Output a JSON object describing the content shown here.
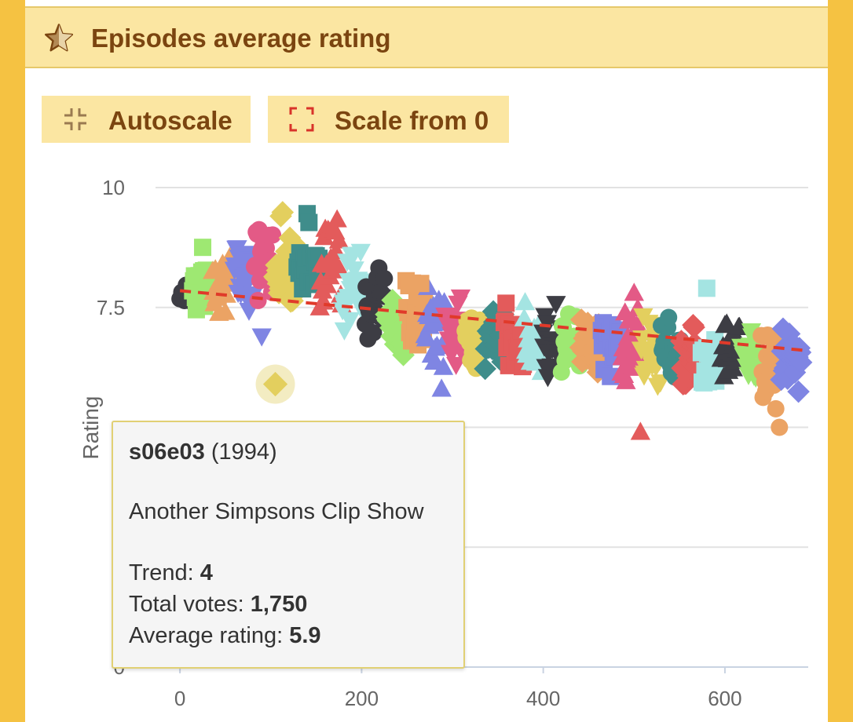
{
  "header": {
    "title": "Episodes average rating",
    "icon": "star-icon"
  },
  "buttons": {
    "autoscale_label": "Autoscale",
    "autoscale_icon": "collapse-icon",
    "scale0_label": "Scale from 0",
    "scale0_icon": "expand-icon"
  },
  "colors": {
    "background": "#f5c242",
    "header_bg": "#fbe6a2",
    "header_text": "#7b4510",
    "trend_line": "#e03a2a",
    "palette": [
      "#3d3d44",
      "#9ee872",
      "#eba364",
      "#7f85e3",
      "#e35a86",
      "#e3cf5e",
      "#3f8d8b",
      "#e35b5b",
      "#a4e4e2"
    ]
  },
  "chart_data": {
    "type": "scatter",
    "xlabel": "",
    "ylabel": "Rating",
    "x_ticks": [
      0,
      200,
      400,
      600
    ],
    "y_ticks": [
      0,
      7.5,
      10
    ],
    "x_range": [
      -20,
      690
    ],
    "y_range": [
      0,
      10
    ],
    "grid": true,
    "trend_line": {
      "x": [
        0,
        690
      ],
      "y": [
        7.85,
        6.6
      ]
    },
    "season_groups": [
      {
        "season": 1,
        "x": [
          0,
          13
        ],
        "mean": 7.8,
        "spread": 0.18,
        "marker": "circle"
      },
      {
        "season": 2,
        "x": [
          14,
          35
        ],
        "mean": 8.0,
        "spread": 0.3,
        "marker": "square"
      },
      {
        "season": 3,
        "x": [
          36,
          59
        ],
        "mean": 8.1,
        "spread": 0.3,
        "marker": "triangle-up"
      },
      {
        "season": 4,
        "x": [
          60,
          81
        ],
        "mean": 8.3,
        "spread": 0.4,
        "marker": "triangle-down"
      },
      {
        "season": 5,
        "x": [
          82,
          103
        ],
        "mean": 8.5,
        "spread": 0.4,
        "marker": "circle"
      },
      {
        "season": 6,
        "x": [
          104,
          128
        ],
        "mean": 8.5,
        "spread": 0.45,
        "marker": "diamond"
      },
      {
        "season": 7,
        "x": [
          129,
          153
        ],
        "mean": 8.5,
        "spread": 0.4,
        "marker": "square"
      },
      {
        "season": 8,
        "x": [
          154,
          178
        ],
        "mean": 8.5,
        "spread": 0.5,
        "marker": "triangle-up"
      },
      {
        "season": 9,
        "x": [
          179,
          203
        ],
        "mean": 7.9,
        "spread": 0.4,
        "marker": "triangle-down"
      },
      {
        "season": 10,
        "x": [
          204,
          226
        ],
        "mean": 7.6,
        "spread": 0.35,
        "marker": "circle"
      },
      {
        "season": 11,
        "x": [
          227,
          248
        ],
        "mean": 7.2,
        "spread": 0.35,
        "marker": "diamond"
      },
      {
        "season": 12,
        "x": [
          249,
          269
        ],
        "mean": 7.3,
        "spread": 0.4,
        "marker": "square"
      },
      {
        "season": 13,
        "x": [
          270,
          291
        ],
        "mean": 7.1,
        "spread": 0.35,
        "marker": "triangle-up"
      },
      {
        "season": 14,
        "x": [
          292,
          313
        ],
        "mean": 7.0,
        "spread": 0.35,
        "marker": "triangle-down"
      },
      {
        "season": 15,
        "x": [
          314,
          335
        ],
        "mean": 6.9,
        "spread": 0.3,
        "marker": "circle"
      },
      {
        "season": 16,
        "x": [
          336,
          356
        ],
        "mean": 6.9,
        "spread": 0.3,
        "marker": "diamond"
      },
      {
        "season": 17,
        "x": [
          357,
          378
        ],
        "mean": 6.9,
        "spread": 0.3,
        "marker": "square"
      },
      {
        "season": 18,
        "x": [
          379,
          399
        ],
        "mean": 6.8,
        "spread": 0.35,
        "marker": "triangle-up"
      },
      {
        "season": 19,
        "x": [
          400,
          419
        ],
        "mean": 6.8,
        "spread": 0.35,
        "marker": "triangle-down"
      },
      {
        "season": 20,
        "x": [
          420,
          440
        ],
        "mean": 6.8,
        "spread": 0.3,
        "marker": "circle"
      },
      {
        "season": 21,
        "x": [
          441,
          463
        ],
        "mean": 6.8,
        "spread": 0.3,
        "marker": "diamond"
      },
      {
        "season": 22,
        "x": [
          464,
          485
        ],
        "mean": 6.7,
        "spread": 0.3,
        "marker": "square"
      },
      {
        "season": 23,
        "x": [
          486,
          507
        ],
        "mean": 6.7,
        "spread": 0.4,
        "marker": "triangle-up"
      },
      {
        "season": 24,
        "x": [
          508,
          529
        ],
        "mean": 6.6,
        "spread": 0.35,
        "marker": "triangle-down"
      },
      {
        "season": 25,
        "x": [
          530,
          551
        ],
        "mean": 6.6,
        "spread": 0.35,
        "marker": "circle"
      },
      {
        "season": 26,
        "x": [
          552,
          573
        ],
        "mean": 6.5,
        "spread": 0.35,
        "marker": "diamond"
      },
      {
        "season": 27,
        "x": [
          574,
          595
        ],
        "mean": 6.5,
        "spread": 0.35,
        "marker": "square"
      },
      {
        "season": 28,
        "x": [
          596,
          617
        ],
        "mean": 6.6,
        "spread": 0.3,
        "marker": "triangle-up"
      },
      {
        "season": 29,
        "x": [
          618,
          639
        ],
        "mean": 6.5,
        "spread": 0.3,
        "marker": "triangle-down"
      },
      {
        "season": 30,
        "x": [
          640,
          661
        ],
        "mean": 6.3,
        "spread": 0.35,
        "marker": "circle"
      },
      {
        "season": 31,
        "x": [
          662,
          684
        ],
        "mean": 6.4,
        "spread": 0.35,
        "marker": "diamond"
      }
    ],
    "outliers": [
      {
        "x": 265,
        "y": 8.0,
        "marker": "square",
        "color": "#eba364"
      },
      {
        "x": 288,
        "y": 5.8,
        "marker": "triangle-up",
        "color": "#7f85e3"
      },
      {
        "x": 580,
        "y": 7.9,
        "marker": "square",
        "color": "#a4e4e2"
      },
      {
        "x": 507,
        "y": 4.9,
        "marker": "triangle-up",
        "color": "#e35b5b"
      },
      {
        "x": 660,
        "y": 5.0,
        "marker": "circle",
        "color": "#eba364"
      },
      {
        "x": 90,
        "y": 6.9,
        "marker": "triangle-down",
        "color": "#7f85e3"
      },
      {
        "x": 500,
        "y": 7.8,
        "marker": "triangle-up",
        "color": "#e35a86"
      }
    ],
    "highlight": {
      "x": 105,
      "y": 5.9,
      "marker": "diamond",
      "color": "#e3cf5e"
    }
  },
  "tooltip": {
    "episode": "s06e03",
    "year": "(1994)",
    "title": "Another Simpsons Clip Show",
    "trend_label": "Trend:",
    "trend_value": "4",
    "votes_label": "Total votes:",
    "votes_value": "1,750",
    "rating_label": "Average rating:",
    "rating_value": "5.9"
  }
}
